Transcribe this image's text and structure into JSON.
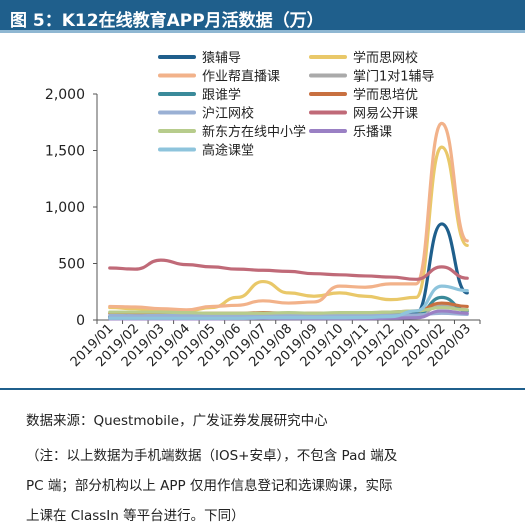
{
  "title": "图 5：K12在线教育APP月活数据（万）",
  "source": "数据来源：Questmobile，广发证券发展研究中心",
  "note": [
    "（注：以上数据为手机端数据（IOS+安卓），不包含 Pad 端及",
    "PC 端；部分机构以上 APP 仅用作信息登记和选课购课，实际",
    "上课在 ClassIn 等平台进行。下同）"
  ],
  "chart_data": {
    "type": "line",
    "title": "",
    "xlabel": "",
    "ylabel": "",
    "ylim": [
      0,
      2000
    ],
    "yticks": [
      0,
      500,
      1000,
      1500,
      2000
    ],
    "ytick_labels": [
      "0",
      "500",
      "1,000",
      "1,500",
      "2,000"
    ],
    "grid": false,
    "legend_position": "top",
    "x": [
      "2019/01",
      "2019/02",
      "2019/03",
      "2019/04",
      "2019/05",
      "2019/06",
      "2019/07",
      "2019/08",
      "2019/09",
      "2019/10",
      "2019/11",
      "2019/12",
      "2020/01",
      "2020/02",
      "2020/03"
    ],
    "series": [
      {
        "name": "猿辅导",
        "color": "#1f5f8c",
        "values": [
          25,
          24,
          25,
          25,
          28,
          30,
          45,
          40,
          35,
          40,
          45,
          48,
          60,
          850,
          240
        ]
      },
      {
        "name": "学而思网校",
        "color": "#e9c869",
        "values": [
          110,
          100,
          85,
          80,
          110,
          200,
          340,
          240,
          210,
          240,
          210,
          180,
          200,
          1530,
          660
        ]
      },
      {
        "name": "作业帮直播课",
        "color": "#f2b28a",
        "values": [
          120,
          115,
          100,
          90,
          120,
          130,
          170,
          150,
          160,
          300,
          290,
          320,
          320,
          1740,
          700
        ]
      },
      {
        "name": "掌门1对1辅导",
        "color": "#aaaaaa",
        "values": [
          20,
          20,
          20,
          20,
          20,
          22,
          25,
          30,
          28,
          30,
          30,
          32,
          40,
          130,
          90
        ]
      },
      {
        "name": "跟谁学",
        "color": "#3a8a9a",
        "values": [
          30,
          28,
          30,
          28,
          30,
          30,
          35,
          30,
          30,
          32,
          35,
          40,
          45,
          200,
          80
        ]
      },
      {
        "name": "学而思培优",
        "color": "#c87040",
        "values": [
          60,
          60,
          60,
          60,
          60,
          60,
          65,
          60,
          60,
          60,
          60,
          70,
          80,
          150,
          120
        ]
      },
      {
        "name": "沪江网校",
        "color": "#9ab0d4",
        "values": [
          40,
          38,
          40,
          40,
          40,
          40,
          40,
          40,
          40,
          40,
          42,
          42,
          45,
          60,
          50
        ]
      },
      {
        "name": "网易公开课",
        "color": "#c06a78",
        "values": [
          460,
          450,
          530,
          490,
          470,
          450,
          440,
          430,
          410,
          400,
          390,
          380,
          360,
          470,
          370
        ]
      },
      {
        "name": "新东方在线中小学",
        "color": "#b7cc8c",
        "values": [
          70,
          70,
          70,
          65,
          60,
          60,
          60,
          65,
          60,
          65,
          65,
          70,
          80,
          110,
          90
        ]
      },
      {
        "name": "乐播课",
        "color": "#9a80c4",
        "values": [
          10,
          10,
          10,
          10,
          10,
          12,
          15,
          12,
          12,
          12,
          12,
          15,
          20,
          80,
          60
        ]
      },
      {
        "name": "高途课堂",
        "color": "#8ec4dc",
        "values": [
          15,
          15,
          15,
          15,
          15,
          15,
          20,
          20,
          20,
          20,
          22,
          30,
          80,
          300,
          260
        ]
      }
    ]
  }
}
